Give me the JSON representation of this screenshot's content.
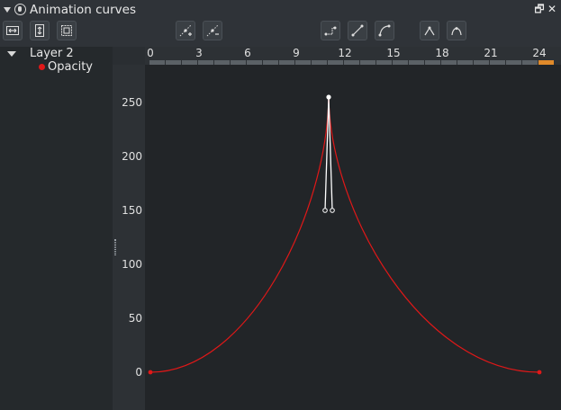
{
  "window": {
    "title": "Animation curves",
    "float_label": "🗗",
    "close_label": "✕"
  },
  "toolbar": {
    "left_buttons": [
      "fit-horizontal-icon",
      "fit-vertical-icon",
      "fit-all-icon"
    ],
    "mid_buttons": [
      "add-point-icon",
      "remove-point-icon"
    ],
    "interp_buttons": [
      "constant-interp-icon",
      "linear-interp-icon",
      "smooth-interp-icon"
    ],
    "tangent_buttons": [
      "break-tangent-icon",
      "join-tangent-icon"
    ]
  },
  "tree": {
    "layer": "Layer 2",
    "curve": "Opacity",
    "curve_color": "#e01818"
  },
  "ruler": {
    "frames": [
      "0",
      "3",
      "6",
      "9",
      "12",
      "15",
      "18",
      "21",
      "24"
    ],
    "current_frame": 24,
    "current_color": "#e08a2a"
  },
  "yaxis": {
    "ticks": [
      "250",
      "200",
      "150",
      "100",
      "50",
      "0"
    ]
  },
  "chart_data": {
    "type": "line",
    "series": [
      {
        "name": "Opacity",
        "color": "#e01818",
        "keyframes": [
          {
            "frame": 0,
            "value": 0
          },
          {
            "frame": 11,
            "value": 255
          },
          {
            "frame": 24,
            "value": 0
          }
        ]
      }
    ],
    "xlim": [
      0,
      24
    ],
    "ylim": [
      0,
      250
    ]
  }
}
